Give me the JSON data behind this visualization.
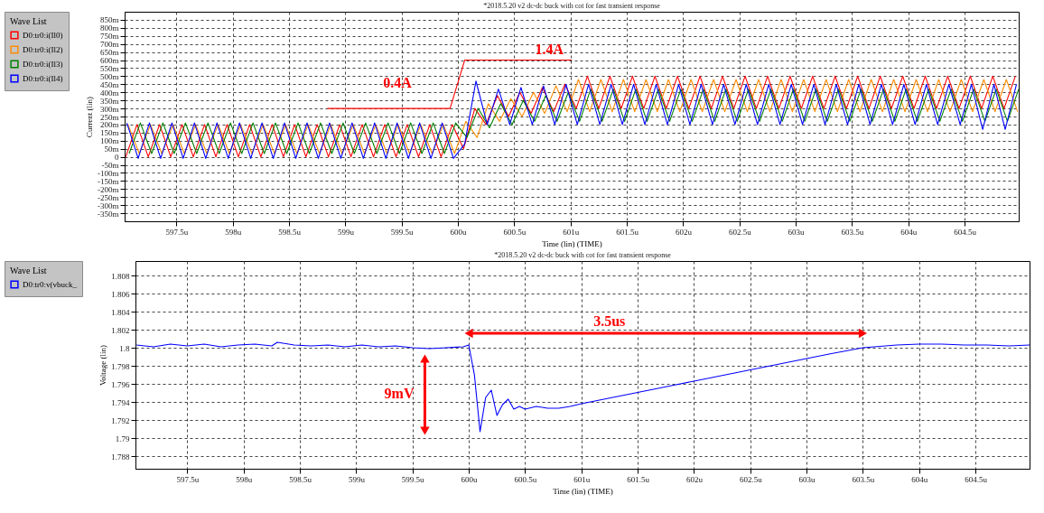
{
  "chart_data": [
    {
      "type": "line",
      "title": "*2018.5.20 v2 dc-dc buck with cot for fast transient response",
      "xlabel": "Time (lin) (TIME)",
      "ylabel": "Current (lin)",
      "legend_title": "Wave List",
      "legend": "top left",
      "grid": true,
      "xlim": [
        597.04,
        604.98
      ],
      "xticks": [
        {
          "value": 597.5,
          "label": "597.5u"
        },
        {
          "value": 598,
          "label": "598u"
        },
        {
          "value": 598.5,
          "label": "598.5u"
        },
        {
          "value": 599,
          "label": "599u"
        },
        {
          "value": 599.5,
          "label": "599.5u"
        },
        {
          "value": 600,
          "label": "600u"
        },
        {
          "value": 600.5,
          "label": "600.5u"
        },
        {
          "value": 601,
          "label": "601u"
        },
        {
          "value": 601.5,
          "label": "601.5u"
        },
        {
          "value": 602,
          "label": "602u"
        },
        {
          "value": 602.5,
          "label": "602.5u"
        },
        {
          "value": 603,
          "label": "603u"
        },
        {
          "value": 603.5,
          "label": "603.5u"
        },
        {
          "value": 604,
          "label": "604u"
        },
        {
          "value": 604.5,
          "label": "604.5u"
        }
      ],
      "ylim": [
        -400,
        900
      ],
      "yticks": [
        {
          "value": -350,
          "label": "-350m"
        },
        {
          "value": -300,
          "label": "-300m"
        },
        {
          "value": -250,
          "label": "-250m"
        },
        {
          "value": -200,
          "label": "-200m"
        },
        {
          "value": -150,
          "label": "-150m"
        },
        {
          "value": -100,
          "label": "-100m"
        },
        {
          "value": -50,
          "label": "-50m"
        },
        0,
        {
          "value": 50,
          "label": "50m"
        },
        {
          "value": 100,
          "label": "100m"
        },
        {
          "value": 150,
          "label": "150m"
        },
        {
          "value": 200,
          "label": "200m"
        },
        {
          "value": 250,
          "label": "250m"
        },
        {
          "value": 300,
          "label": "300m"
        },
        {
          "value": 350,
          "label": "350m"
        },
        {
          "value": 400,
          "label": "400m"
        },
        {
          "value": 450,
          "label": "450m"
        },
        {
          "value": 500,
          "label": "500m"
        },
        {
          "value": 550,
          "label": "550m"
        },
        {
          "value": 600,
          "label": "600m"
        },
        {
          "value": 650,
          "label": "650m"
        },
        {
          "value": 700,
          "label": "700m"
        },
        {
          "value": 750,
          "label": "750m"
        },
        {
          "value": 800,
          "label": "800m"
        },
        {
          "value": 850,
          "label": "850m"
        }
      ],
      "series": [
        {
          "name": "D0:tr0:i(Il0)",
          "color": "#ff0000",
          "x": [
            597.05,
            597.15,
            597.25,
            597.35,
            597.45,
            597.55,
            597.65,
            597.75,
            597.85,
            597.95,
            598.05,
            598.15,
            598.25,
            598.35,
            598.45,
            598.55,
            598.65,
            598.75,
            598.85,
            598.95,
            599.05,
            599.15,
            599.25,
            599.35,
            599.45,
            599.55,
            599.65,
            599.75,
            599.85,
            599.95,
            600.05,
            600.15,
            600.25,
            600.35,
            600.45,
            600.55,
            600.65,
            600.75,
            600.85,
            600.95,
            601.05,
            601.15,
            601.25,
            601.35,
            601.45,
            601.55,
            601.65,
            601.75,
            601.85,
            601.95,
            602.05,
            602.15,
            602.25,
            602.35,
            602.45,
            602.55,
            602.65,
            602.75,
            602.85,
            602.95,
            603.05,
            603.15,
            603.25,
            603.35,
            603.45,
            603.55,
            603.65,
            603.75,
            603.85,
            603.95,
            604.05,
            604.15,
            604.25,
            604.35,
            604.45,
            604.55,
            604.65,
            604.75,
            604.85,
            604.95
          ],
          "values": [
            0,
            200,
            0,
            200,
            0,
            200,
            0,
            200,
            0,
            200,
            0,
            200,
            0,
            200,
            0,
            200,
            0,
            200,
            0,
            200,
            0,
            200,
            0,
            200,
            0,
            200,
            0,
            200,
            0,
            200,
            50,
            300,
            200,
            380,
            250,
            400,
            270,
            430,
            280,
            450,
            300,
            500,
            300,
            500,
            300,
            500,
            300,
            500,
            300,
            500,
            300,
            500,
            300,
            500,
            300,
            500,
            300,
            500,
            300,
            500,
            300,
            500,
            300,
            500,
            300,
            500,
            300,
            500,
            300,
            500,
            300,
            500,
            300,
            500,
            300,
            500,
            300,
            500,
            300,
            500
          ]
        },
        {
          "name": "D0:tr0:i(Il2)",
          "color": "#ff8c00",
          "x": [
            597.07,
            597.17,
            597.27,
            597.37,
            597.47,
            597.57,
            597.67,
            597.77,
            597.87,
            597.97,
            598.07,
            598.17,
            598.27,
            598.37,
            598.47,
            598.57,
            598.67,
            598.77,
            598.87,
            598.97,
            599.07,
            599.17,
            599.27,
            599.37,
            599.47,
            599.57,
            599.67,
            599.77,
            599.87,
            599.97,
            600.07,
            600.17,
            600.27,
            600.37,
            600.47,
            600.57,
            600.67,
            600.77,
            600.87,
            600.97,
            601.07,
            601.17,
            601.27,
            601.37,
            601.47,
            601.57,
            601.67,
            601.77,
            601.87,
            601.97,
            602.07,
            602.17,
            602.27,
            602.37,
            602.47,
            602.57,
            602.67,
            602.77,
            602.87,
            602.97,
            603.07,
            603.17,
            603.27,
            603.37,
            603.47,
            603.57,
            603.67,
            603.77,
            603.87,
            603.97,
            604.07,
            604.17,
            604.27,
            604.37,
            604.47,
            604.57,
            604.67,
            604.77,
            604.87,
            604.97
          ],
          "values": [
            200,
            20,
            200,
            20,
            200,
            20,
            200,
            20,
            200,
            20,
            200,
            20,
            200,
            20,
            200,
            20,
            200,
            20,
            200,
            20,
            200,
            20,
            200,
            20,
            200,
            20,
            200,
            20,
            200,
            20,
            220,
            120,
            330,
            220,
            360,
            250,
            400,
            270,
            440,
            280,
            480,
            280,
            480,
            280,
            480,
            280,
            480,
            280,
            480,
            280,
            480,
            280,
            480,
            280,
            480,
            280,
            480,
            280,
            480,
            280,
            480,
            280,
            480,
            280,
            480,
            280,
            480,
            280,
            480,
            280,
            480,
            280,
            480,
            280,
            480,
            280,
            480,
            280,
            480,
            280
          ]
        },
        {
          "name": "D0:tr0:i(Il3)",
          "color": "#008000",
          "x": [
            597.08,
            597.18,
            597.28,
            597.38,
            597.48,
            597.58,
            597.68,
            597.78,
            597.88,
            597.98,
            598.08,
            598.18,
            598.28,
            598.38,
            598.48,
            598.58,
            598.68,
            598.78,
            598.88,
            598.98,
            599.08,
            599.18,
            599.28,
            599.38,
            599.48,
            599.58,
            599.68,
            599.78,
            599.88,
            599.98,
            600.08,
            600.18,
            600.28,
            600.38,
            600.48,
            600.58,
            600.68,
            600.78,
            600.88,
            600.98,
            601.08,
            601.18,
            601.28,
            601.38,
            601.48,
            601.58,
            601.68,
            601.78,
            601.88,
            601.98,
            602.08,
            602.18,
            602.28,
            602.38,
            602.48,
            602.58,
            602.68,
            602.78,
            602.88,
            602.98,
            603.08,
            603.18,
            603.28,
            603.38,
            603.48,
            603.58,
            603.68,
            603.78,
            603.88,
            603.98,
            604.08,
            604.18,
            604.28,
            604.38,
            604.48,
            604.58,
            604.68,
            604.78,
            604.88,
            604.98
          ],
          "values": [
            20,
            210,
            20,
            210,
            20,
            210,
            20,
            210,
            20,
            210,
            20,
            210,
            20,
            210,
            20,
            210,
            20,
            210,
            20,
            210,
            20,
            210,
            20,
            210,
            20,
            210,
            20,
            210,
            20,
            210,
            120,
            300,
            180,
            330,
            200,
            350,
            220,
            380,
            220,
            400,
            220,
            420,
            220,
            420,
            220,
            420,
            220,
            420,
            220,
            420,
            220,
            420,
            220,
            420,
            220,
            420,
            220,
            420,
            220,
            420,
            220,
            420,
            220,
            420,
            220,
            420,
            220,
            420,
            220,
            420,
            220,
            420,
            220,
            420,
            220,
            420,
            220,
            420,
            220,
            420
          ]
        },
        {
          "name": "D0:tr0:i(Il4)",
          "color": "#0000ff",
          "x": [
            597.06,
            597.16,
            597.26,
            597.36,
            597.46,
            597.56,
            597.66,
            597.76,
            597.86,
            597.96,
            598.06,
            598.16,
            598.26,
            598.36,
            598.46,
            598.56,
            598.66,
            598.76,
            598.86,
            598.96,
            599.06,
            599.16,
            599.26,
            599.36,
            599.46,
            599.56,
            599.66,
            599.76,
            599.86,
            599.96,
            600.06,
            600.16,
            600.26,
            600.36,
            600.46,
            600.56,
            600.66,
            600.76,
            600.86,
            600.96,
            601.06,
            601.16,
            601.26,
            601.36,
            601.46,
            601.56,
            601.66,
            601.76,
            601.86,
            601.96,
            602.06,
            602.16,
            602.26,
            602.36,
            602.46,
            602.56,
            602.66,
            602.76,
            602.86,
            602.96,
            603.06,
            603.16,
            603.26,
            603.36,
            603.46,
            603.56,
            603.66,
            603.76,
            603.86,
            603.96,
            604.06,
            604.16,
            604.26,
            604.36,
            604.46,
            604.56,
            604.66,
            604.76,
            604.86,
            604.96
          ],
          "values": [
            210,
            -10,
            210,
            -10,
            210,
            -10,
            210,
            -10,
            210,
            -10,
            210,
            -10,
            210,
            -10,
            210,
            -10,
            210,
            -10,
            210,
            -10,
            210,
            -10,
            210,
            -10,
            210,
            -10,
            210,
            -10,
            210,
            -10,
            80,
            470,
            200,
            420,
            200,
            430,
            200,
            440,
            200,
            450,
            200,
            450,
            200,
            450,
            200,
            450,
            200,
            450,
            200,
            450,
            200,
            450,
            200,
            450,
            200,
            450,
            200,
            450,
            200,
            450,
            200,
            450,
            200,
            450,
            200,
            450,
            200,
            450,
            200,
            450,
            200,
            450,
            200,
            450,
            200,
            450,
            170,
            450,
            170,
            450
          ]
        },
        {
          "color": "#ff0000",
          "x": [
            598.84,
            599.93,
            600.06,
            601.01
          ],
          "values": [
            300,
            300,
            600,
            600
          ]
        }
      ],
      "annotations": [
        "0.4A",
        "1.4A"
      ]
    },
    {
      "type": "line",
      "title": "*2018.5.20 v2 dc-dc buck with cot for fast transient response",
      "xlabel": "Time (lin) (TIME)",
      "ylabel": "Voltage (lin)",
      "legend_title": "Wave List",
      "legend": "top left",
      "grid": true,
      "xlim": [
        597.04,
        604.98
      ],
      "xticks": [
        {
          "value": 597.5,
          "label": "597.5u"
        },
        {
          "value": 598,
          "label": "598u"
        },
        {
          "value": 598.5,
          "label": "598.5u"
        },
        {
          "value": 599,
          "label": "599u"
        },
        {
          "value": 599.5,
          "label": "599.5u"
        },
        {
          "value": 600,
          "label": "600u"
        },
        {
          "value": 600.5,
          "label": "600.5u"
        },
        {
          "value": 601,
          "label": "601u"
        },
        {
          "value": 601.5,
          "label": "601.5u"
        },
        {
          "value": 602,
          "label": "602u"
        },
        {
          "value": 602.5,
          "label": "602.5u"
        },
        {
          "value": 603,
          "label": "603u"
        },
        {
          "value": 603.5,
          "label": "603.5u"
        },
        {
          "value": 604,
          "label": "604u"
        },
        {
          "value": 604.5,
          "label": "604.5u"
        }
      ],
      "ylim": [
        1.7866,
        1.8096
      ],
      "yticks": [
        1.788,
        1.79,
        1.792,
        1.794,
        1.796,
        1.798,
        1.8,
        1.802,
        1.804,
        1.806,
        1.808
      ],
      "series": [
        {
          "name": "D0:tr0:v(vbuck_",
          "color": "#0000ff",
          "x": [
            597.05,
            597.2,
            597.35,
            597.5,
            597.65,
            597.8,
            597.95,
            598.1,
            598.25,
            598.3,
            598.45,
            598.6,
            598.75,
            598.9,
            599.05,
            599.2,
            599.35,
            599.5,
            599.65,
            599.8,
            599.95,
            600.0,
            600.05,
            600.1,
            600.15,
            600.2,
            600.25,
            600.3,
            600.35,
            600.4,
            600.45,
            600.5,
            600.6,
            600.7,
            600.8,
            600.9,
            601.0,
            601.2,
            601.4,
            601.6,
            601.8,
            602.0,
            602.2,
            602.4,
            602.6,
            602.8,
            603.0,
            603.2,
            603.5,
            603.8,
            604.0,
            604.2,
            604.4,
            604.6,
            604.8,
            604.98
          ],
          "values": [
            1.8003,
            1.8001,
            1.8004,
            1.8002,
            1.8004,
            1.8001,
            1.8003,
            1.8004,
            1.8002,
            1.8006,
            1.8003,
            1.8002,
            1.8003,
            1.8001,
            1.8003,
            1.8001,
            1.8002,
            1.8,
            1.7999,
            1.8,
            1.8001,
            1.8003,
            1.797,
            1.7907,
            1.7945,
            1.7953,
            1.7925,
            1.7937,
            1.7943,
            1.7932,
            1.7935,
            1.7932,
            1.7935,
            1.7933,
            1.7933,
            1.7935,
            1.7938,
            1.7943,
            1.7948,
            1.7953,
            1.7958,
            1.7963,
            1.7968,
            1.7973,
            1.7978,
            1.7983,
            1.7988,
            1.7993,
            1.8,
            1.8003,
            1.8004,
            1.8004,
            1.8003,
            1.8003,
            1.8002,
            1.8003
          ]
        }
      ],
      "annotations": [
        "3.5us",
        "9mV"
      ]
    }
  ]
}
